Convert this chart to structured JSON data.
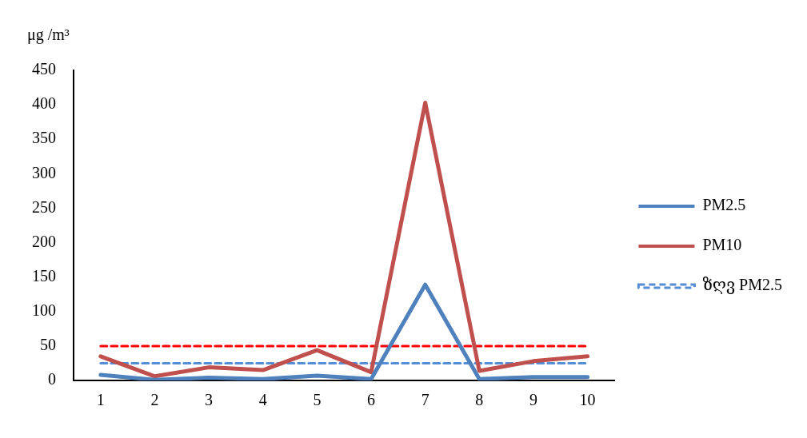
{
  "chart_data": {
    "type": "line",
    "ylabel": "μg /m³",
    "categories": [
      "1",
      "2",
      "3",
      "4",
      "5",
      "6",
      "7",
      "8",
      "9",
      "10"
    ],
    "series": [
      {
        "name": "PM2.5",
        "color": "#4f81bd",
        "values": [
          8,
          1,
          4,
          2,
          7,
          2,
          139,
          2,
          5,
          5
        ]
      },
      {
        "name": "PM10",
        "color": "#c0504d",
        "values": [
          35,
          6,
          19,
          15,
          44,
          12,
          403,
          14,
          28,
          35
        ]
      },
      {
        "name": "ზღვ PM2.5",
        "color": "#558ed5",
        "line_style": "dashed",
        "values": [
          25,
          25,
          25,
          25,
          25,
          25,
          25,
          25,
          25,
          25
        ]
      },
      {
        "color": "#ff0000",
        "line_style": "dashed",
        "values": [
          50,
          50,
          50,
          50,
          50,
          50,
          50,
          50,
          50,
          50
        ]
      }
    ],
    "ylim": [
      0,
      450
    ],
    "yticks": [
      0,
      50,
      100,
      150,
      200,
      250,
      300,
      350,
      400,
      450
    ],
    "grid": false,
    "legend": "right",
    "marker": "none"
  }
}
